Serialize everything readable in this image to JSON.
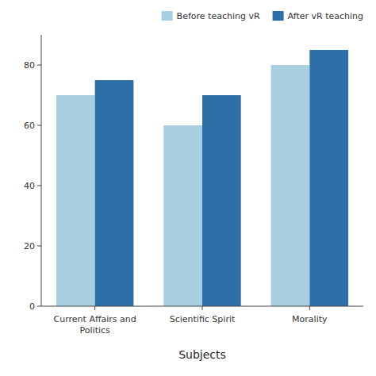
{
  "chart_data": {
    "type": "bar",
    "x_label": "Subjects",
    "categories": [
      "Current Affairs and Politics",
      "Scientific Spirit",
      "Morality"
    ],
    "series": [
      {
        "name": "Before teaching vR",
        "color": "#a8cfe0",
        "values": [
          70,
          60,
          80
        ]
      },
      {
        "name": "After vR teaching",
        "color": "#2e6fa8",
        "values": [
          75,
          70,
          85
        ]
      }
    ],
    "ylim": [
      0,
      90
    ],
    "yticks": [
      0,
      20,
      40,
      60,
      80
    ],
    "grid": false,
    "legend": "upper right"
  }
}
